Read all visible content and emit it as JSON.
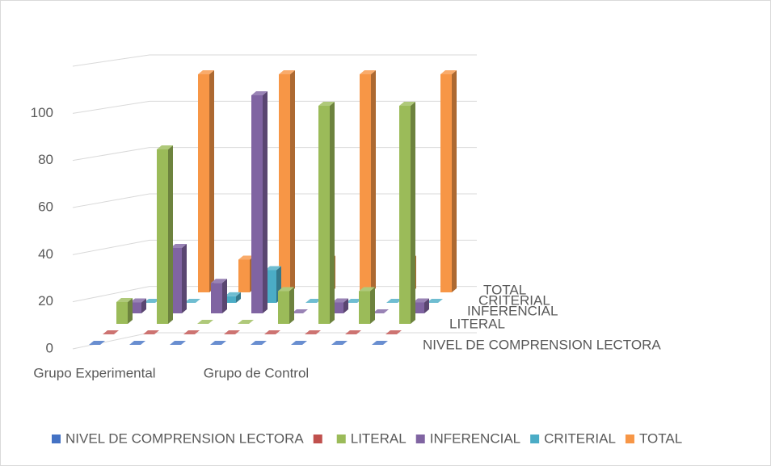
{
  "chart_data": {
    "type": "bar3d",
    "categories": [
      "Grupo Experimental",
      null,
      null,
      null,
      "Grupo de Control",
      null,
      null,
      null
    ],
    "series": [
      {
        "name": "NIVEL DE COMPRENSION LECTORA",
        "color": "#4472c4",
        "values": [
          0,
          0,
          0,
          0,
          0,
          0,
          0,
          0
        ]
      },
      {
        "color": "#c0504d",
        "values": [
          0,
          0,
          0,
          0,
          0,
          0,
          0,
          0
        ]
      },
      {
        "name": "LITERAL",
        "color": "#9bbb59",
        "values": [
          10,
          80,
          0,
          0,
          15,
          100,
          15,
          100
        ]
      },
      {
        "name": "INFERENCIAL",
        "color": "#8064a2",
        "values": [
          5,
          30,
          14,
          100,
          0,
          5,
          0,
          5
        ]
      },
      {
        "name": "CRITERIAL",
        "color": "#4bacc6",
        "values": [
          0,
          0,
          3,
          15,
          0,
          0,
          0,
          0
        ]
      },
      {
        "name": "TOTAL",
        "color": "#f79646",
        "values": [
          15,
          100,
          15,
          100,
          15,
          100,
          15,
          100
        ]
      }
    ],
    "ylim": [
      0,
      120
    ],
    "yticks": [
      0,
      20,
      40,
      60,
      80,
      100
    ],
    "grid": true,
    "legend": "bottom"
  }
}
